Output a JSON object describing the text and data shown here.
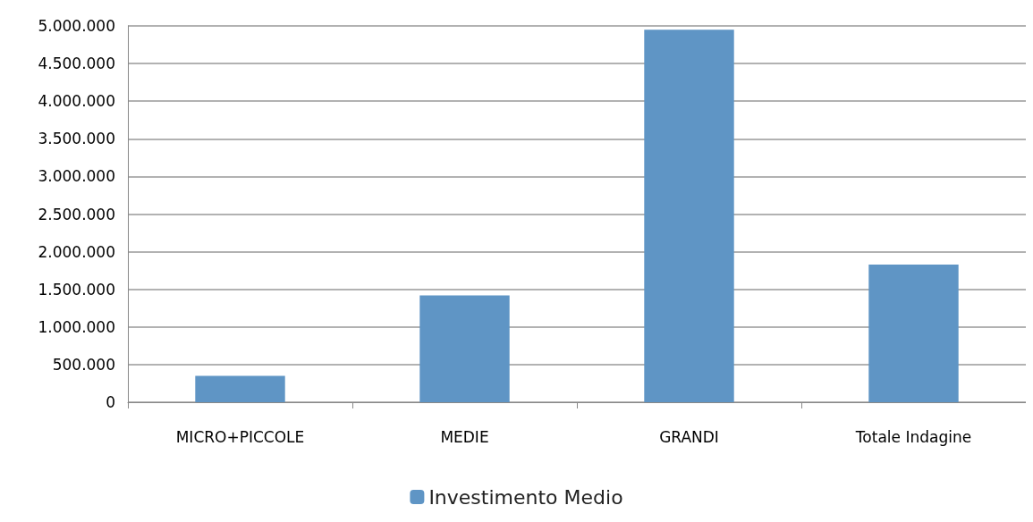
{
  "chart_data": {
    "type": "bar",
    "categories": [
      "MICRO+PICCOLE",
      "MEDIE",
      "GRANDI",
      "Totale Indagine"
    ],
    "series": [
      {
        "name": "Investimento Medio",
        "color": "#5f95c5",
        "values": [
          350000,
          1420000,
          4950000,
          1830000
        ]
      }
    ],
    "ylim": [
      0,
      5000000
    ],
    "yticks": [
      {
        "value": 0,
        "label": "0"
      },
      {
        "value": 500000,
        "label": "500.000"
      },
      {
        "value": 1000000,
        "label": "1.000.000"
      },
      {
        "value": 1500000,
        "label": "1.500.000"
      },
      {
        "value": 2000000,
        "label": "2.000.000"
      },
      {
        "value": 2500000,
        "label": "2.500.000"
      },
      {
        "value": 3000000,
        "label": "3.000.000"
      },
      {
        "value": 3500000,
        "label": "3.500.000"
      },
      {
        "value": 4000000,
        "label": "4.000.000"
      },
      {
        "value": 4500000,
        "label": "4.500.000"
      },
      {
        "value": 5000000,
        "label": "5.000.000"
      }
    ],
    "grid": "y",
    "legend": "bottom"
  }
}
